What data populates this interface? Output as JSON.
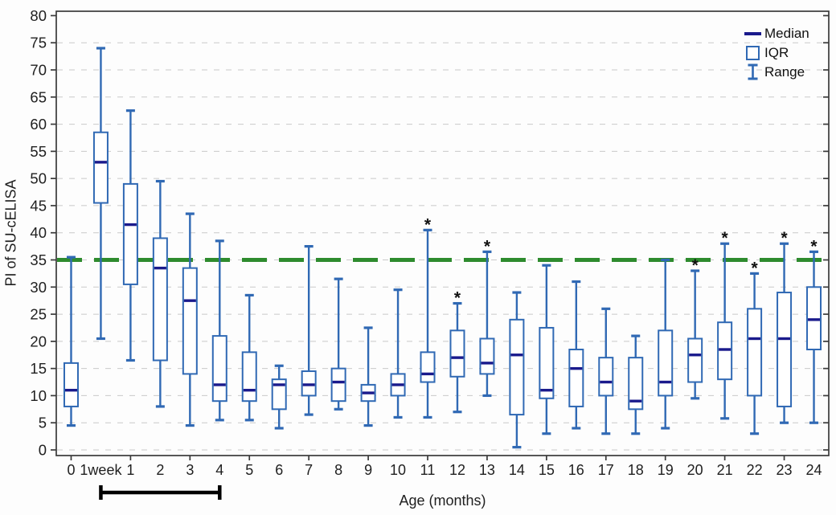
{
  "chart_data": {
    "type": "boxplot",
    "title": "",
    "xlabel": "Age (months)",
    "ylabel": "PI of SU-cELISA",
    "ylim": [
      0,
      80
    ],
    "ytick_step": 5,
    "grid": "horizontal-dashed",
    "legend_position": "top-right-inside",
    "significance_marker": "*",
    "reference_line": {
      "value": 35,
      "style": "long-dash"
    },
    "legend": {
      "entries": [
        {
          "label": "Median",
          "icon": "median-line-icon"
        },
        {
          "label": "IQR",
          "icon": "iqr-box-icon"
        },
        {
          "label": "Range",
          "icon": "range-whisker-icon"
        }
      ]
    },
    "categories": [
      "0",
      "1week",
      "1",
      "2",
      "3",
      "4",
      "5",
      "6",
      "7",
      "8",
      "9",
      "10",
      "11",
      "12",
      "13",
      "14",
      "15",
      "16",
      "17",
      "18",
      "19",
      "20",
      "21",
      "22",
      "23",
      "24"
    ],
    "boxes": [
      {
        "category": "0",
        "min": 4.5,
        "q1": 8,
        "median": 11,
        "q3": 16,
        "max": 35.5,
        "significant": false
      },
      {
        "category": "1week",
        "min": 20.5,
        "q1": 45.5,
        "median": 53,
        "q3": 58.5,
        "max": 74,
        "significant": false
      },
      {
        "category": "1",
        "min": 16.5,
        "q1": 30.5,
        "median": 41.5,
        "q3": 49,
        "max": 62.5,
        "significant": false
      },
      {
        "category": "2",
        "min": 8,
        "q1": 16.5,
        "median": 33.5,
        "q3": 39,
        "max": 49.5,
        "significant": false
      },
      {
        "category": "3",
        "min": 4.5,
        "q1": 14,
        "median": 27.5,
        "q3": 33.5,
        "max": 43.5,
        "significant": false
      },
      {
        "category": "4",
        "min": 5.5,
        "q1": 9,
        "median": 12,
        "q3": 21,
        "max": 38.5,
        "significant": false
      },
      {
        "category": "5",
        "min": 5.5,
        "q1": 9,
        "median": 11,
        "q3": 18,
        "max": 28.5,
        "significant": false
      },
      {
        "category": "6",
        "min": 4,
        "q1": 7.5,
        "median": 12,
        "q3": 13,
        "max": 15.5,
        "significant": false
      },
      {
        "category": "7",
        "min": 6.5,
        "q1": 10,
        "median": 12,
        "q3": 14.5,
        "max": 37.5,
        "significant": false
      },
      {
        "category": "8",
        "min": 7.5,
        "q1": 9,
        "median": 12.5,
        "q3": 15,
        "max": 31.5,
        "significant": false
      },
      {
        "category": "9",
        "min": 4.5,
        "q1": 9,
        "median": 10.5,
        "q3": 12,
        "max": 22.5,
        "significant": false
      },
      {
        "category": "10",
        "min": 6,
        "q1": 10,
        "median": 12,
        "q3": 14,
        "max": 29.5,
        "significant": false
      },
      {
        "category": "11",
        "min": 6,
        "q1": 12.5,
        "median": 14,
        "q3": 18,
        "max": 40.5,
        "significant": true
      },
      {
        "category": "12",
        "min": 7,
        "q1": 13.5,
        "median": 17,
        "q3": 22,
        "max": 27,
        "significant": true
      },
      {
        "category": "13",
        "min": 10,
        "q1": 14,
        "median": 16,
        "q3": 20.5,
        "max": 36.5,
        "significant": true
      },
      {
        "category": "14",
        "min": 0.5,
        "q1": 6.5,
        "median": 17.5,
        "q3": 24,
        "max": 29,
        "significant": false
      },
      {
        "category": "15",
        "min": 3,
        "q1": 9.5,
        "median": 11,
        "q3": 22.5,
        "max": 34,
        "significant": false
      },
      {
        "category": "16",
        "min": 4,
        "q1": 8,
        "median": 15,
        "q3": 18.5,
        "max": 31,
        "significant": false
      },
      {
        "category": "17",
        "min": 3,
        "q1": 10,
        "median": 12.5,
        "q3": 17,
        "max": 26,
        "significant": false
      },
      {
        "category": "18",
        "min": 3,
        "q1": 7.5,
        "median": 9,
        "q3": 17,
        "max": 21,
        "significant": false
      },
      {
        "category": "19",
        "min": 4,
        "q1": 10,
        "median": 12.5,
        "q3": 22,
        "max": 35,
        "significant": false
      },
      {
        "category": "20",
        "min": 9.5,
        "q1": 12.5,
        "median": 17.5,
        "q3": 20.5,
        "max": 33,
        "significant": true
      },
      {
        "category": "21",
        "min": 5.8,
        "q1": 13,
        "median": 18.5,
        "q3": 23.5,
        "max": 38,
        "significant": true
      },
      {
        "category": "22",
        "min": 3,
        "q1": 10,
        "median": 20.5,
        "q3": 26,
        "max": 32.5,
        "significant": true
      },
      {
        "category": "23",
        "min": 5,
        "q1": 8,
        "median": 20.5,
        "q3": 29,
        "max": 38,
        "significant": true
      },
      {
        "category": "24",
        "min": 5,
        "q1": 18.5,
        "median": 24,
        "q3": 30,
        "max": 36.5,
        "significant": true
      }
    ],
    "bracket": {
      "from_category": "1week",
      "to_category": "4"
    },
    "colors": {
      "box_border": "#3069b4",
      "whisker": "#3069b4",
      "median": "#1a1a8c",
      "reference_line": "#2e8b2e",
      "gridline": "#c9c9c9",
      "frame": "#3a3a3a",
      "text": "#1f1f1f",
      "bracket": "#000000",
      "star": "#111111"
    }
  }
}
